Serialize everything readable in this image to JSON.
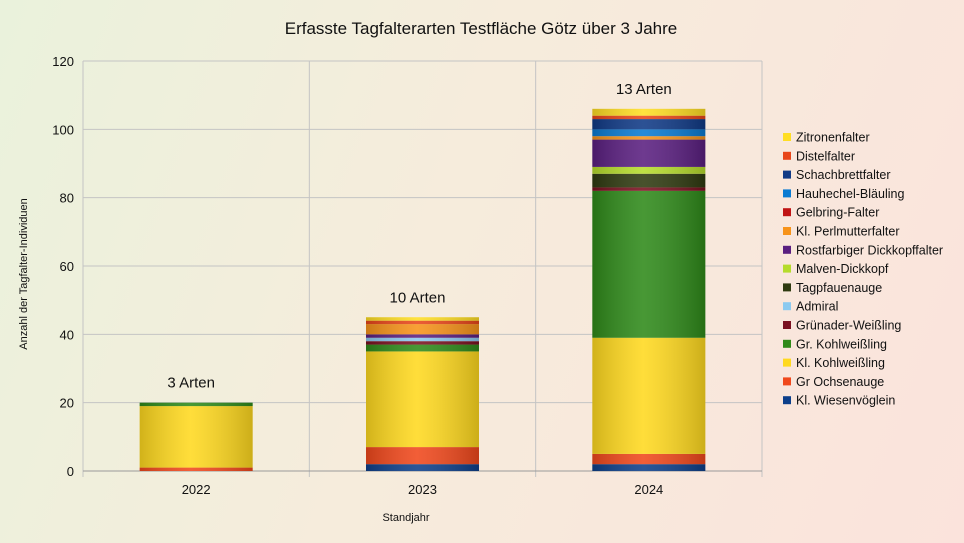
{
  "chart_data": {
    "type": "bar",
    "stacked": true,
    "title": "Erfasste Tagfalterarten Testfläche Götz über 3 Jahre",
    "xlabel": "Standjahr",
    "ylabel": "Anzahl der Tagfalter-Individuen",
    "ylim": [
      0,
      120
    ],
    "yticks": [
      0,
      20,
      40,
      60,
      80,
      100,
      120
    ],
    "grid": true,
    "legend_position": "right",
    "categories": [
      "2022",
      "2023",
      "2024"
    ],
    "annotations": [
      "3 Arten",
      "10 Arten",
      "13 Arten"
    ],
    "series": [
      {
        "name": "Kl. Wiesenvöglein",
        "color": "#0d3f8a",
        "values": [
          0,
          2,
          2
        ]
      },
      {
        "name": "Gr Ochsenauge",
        "color": "#f0481c",
        "values": [
          1,
          5,
          3
        ]
      },
      {
        "name": "Kl. Kohlweißling",
        "color": "#ffd91f",
        "values": [
          18,
          28,
          34
        ]
      },
      {
        "name": "Gr. Kohlweißling",
        "color": "#2f8a1a",
        "values": [
          1,
          2,
          43
        ]
      },
      {
        "name": "Grünader-Weißling",
        "color": "#7a1020",
        "values": [
          0,
          1,
          1
        ]
      },
      {
        "name": "Admiral",
        "color": "#8ccaf0",
        "values": [
          0,
          1,
          0
        ]
      },
      {
        "name": "Tagpfauenauge",
        "color": "#2f3a10",
        "values": [
          0,
          0,
          4
        ]
      },
      {
        "name": "Malven-Dickkopf",
        "color": "#b6dc2c",
        "values": [
          0,
          0,
          2
        ]
      },
      {
        "name": "Rostfarbiger Dickkopffalter",
        "color": "#5a1f80",
        "values": [
          0,
          1,
          8
        ]
      },
      {
        "name": "Kl. Perlmutterfalter",
        "color": "#f7931a",
        "values": [
          0,
          3,
          1
        ]
      },
      {
        "name": "Gelbring-Falter",
        "color": "#c01414",
        "values": [
          0,
          0,
          0
        ]
      },
      {
        "name": "Hauhechel-Bläuling",
        "color": "#0a7bd2",
        "values": [
          0,
          0,
          2
        ]
      },
      {
        "name": "Schachbrettfalter",
        "color": "#103a86",
        "values": [
          0,
          0,
          3
        ]
      },
      {
        "name": "Distelfalter",
        "color": "#e8461a",
        "values": [
          0,
          1,
          1
        ]
      },
      {
        "name": "Zitronenfalter",
        "color": "#ffde24",
        "values": [
          0,
          1,
          2
        ]
      }
    ]
  }
}
